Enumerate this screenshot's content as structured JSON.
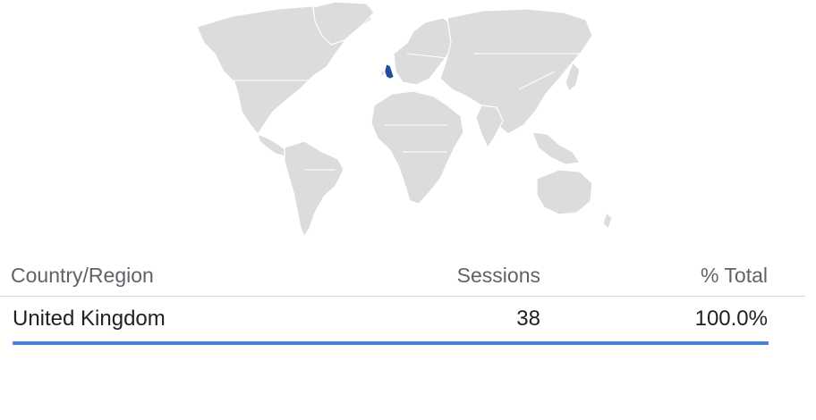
{
  "map": {
    "highlight_color": "#1f4e9c",
    "land_color": "#dcdcdc",
    "highlighted_region": "United Kingdom"
  },
  "table": {
    "headers": {
      "country": "Country/Region",
      "sessions": "Sessions",
      "total": "% Total"
    },
    "rows": [
      {
        "country": "United Kingdom",
        "sessions": "38",
        "total": "100.0%",
        "share": 1.0
      }
    ],
    "bar_color": "#4a7fdc"
  }
}
